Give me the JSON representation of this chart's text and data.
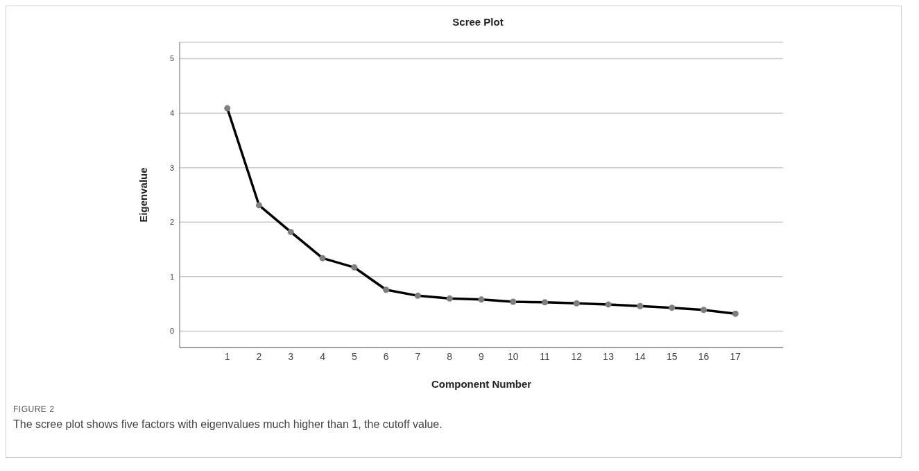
{
  "chart_data": {
    "type": "line",
    "title": "Scree Plot",
    "xlabel": "Component Number",
    "ylabel": "Eigenvalue",
    "x": [
      1,
      2,
      3,
      4,
      5,
      6,
      7,
      8,
      9,
      10,
      11,
      12,
      13,
      14,
      15,
      16,
      17
    ],
    "series": [
      {
        "color": "#000000",
        "values": [
          4.09,
          2.31,
          1.82,
          1.34,
          1.17,
          0.76,
          0.65,
          0.6,
          0.58,
          0.54,
          0.53,
          0.51,
          0.49,
          0.46,
          0.43,
          0.39,
          0.32
        ]
      }
    ],
    "xlim": [
      -0.5,
      18.5
    ],
    "xticks": [
      1,
      2,
      3,
      4,
      5,
      6,
      7,
      8,
      9,
      10,
      11,
      12,
      13,
      14,
      15,
      16,
      17
    ],
    "ylim": [
      -0.3,
      5.3
    ],
    "yticks": [
      0,
      1,
      2,
      3,
      4,
      5
    ],
    "grid": "y",
    "marker": "circle",
    "line_style": "solid",
    "legend": false,
    "annotations": [
      "FIGURE 2",
      "The scree plot shows five factors with eigenvalues much higher than 1, the cutoff value."
    ]
  }
}
